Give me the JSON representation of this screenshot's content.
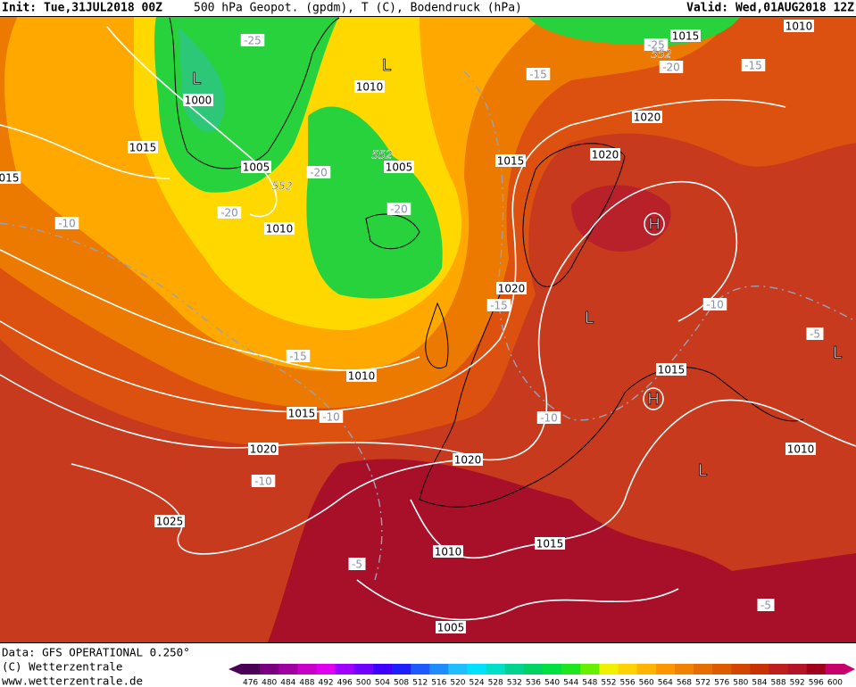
{
  "header": {
    "init": "Init: Tue,31JUL2018 00Z",
    "title": "500 hPa Geopot. (gpdm), T (C), Bodendruck (hPa)",
    "valid": "Valid: Wed,01AUG2018 12Z"
  },
  "footer": {
    "data": "Data: GFS OPERATIONAL 0.250°",
    "copyright": "(C) Wetterzentrale",
    "website": "www.wetterzentrale.de"
  },
  "legend": {
    "ticks": [
      476,
      480,
      484,
      488,
      492,
      496,
      500,
      504,
      508,
      512,
      516,
      520,
      524,
      528,
      532,
      536,
      540,
      544,
      548,
      552,
      556,
      560,
      564,
      568,
      572,
      576,
      580,
      584,
      588,
      592,
      596,
      600
    ],
    "colors": [
      "#4b0055",
      "#7a0080",
      "#a000a0",
      "#c800c8",
      "#e000f0",
      "#a000ff",
      "#7000ff",
      "#4000ff",
      "#1e1eff",
      "#1e5aff",
      "#1e8cff",
      "#1ebeff",
      "#00e0ff",
      "#00e0c8",
      "#00d290",
      "#00d264",
      "#00e040",
      "#1ee61e",
      "#64f000",
      "#f0f000",
      "#ffd200",
      "#ffb400",
      "#ff9600",
      "#f08200",
      "#e66e00",
      "#dc5a00",
      "#d24600",
      "#c83200",
      "#be1e1e",
      "#b41428",
      "#a0001e",
      "#c8006e"
    ]
  },
  "labels": [
    {
      "text": "1000",
      "kind": "isobar"
    },
    {
      "text": "1015",
      "kind": "isobar"
    },
    {
      "text": "1005",
      "kind": "isobar"
    },
    {
      "text": "1010",
      "kind": "isobar"
    },
    {
      "text": "1005",
      "kind": "isobar"
    },
    {
      "text": "1010",
      "kind": "isobar"
    },
    {
      "text": "1015",
      "kind": "isobar"
    },
    {
      "text": "1020",
      "kind": "isobar"
    },
    {
      "text": "1020",
      "kind": "isobar"
    },
    {
      "text": "1015",
      "kind": "isobar"
    },
    {
      "text": "1010",
      "kind": "isobar"
    },
    {
      "text": "1020",
      "kind": "isobar"
    },
    {
      "text": "1010",
      "kind": "isobar"
    },
    {
      "text": "1015",
      "kind": "isobar"
    },
    {
      "text": "1020",
      "kind": "isobar"
    },
    {
      "text": "1020",
      "kind": "isobar"
    },
    {
      "text": "1015",
      "kind": "isobar"
    },
    {
      "text": "1010",
      "kind": "isobar"
    },
    {
      "text": "1025",
      "kind": "isobar"
    },
    {
      "text": "1010",
      "kind": "isobar"
    },
    {
      "text": "1015",
      "kind": "isobar"
    },
    {
      "text": "1005",
      "kind": "isobar"
    },
    {
      "text": "015",
      "kind": "isobar"
    },
    {
      "text": "-25",
      "kind": "temp"
    },
    {
      "text": "-25",
      "kind": "temp"
    },
    {
      "text": "-20",
      "kind": "temp"
    },
    {
      "text": "-15",
      "kind": "temp"
    },
    {
      "text": "-15",
      "kind": "temp"
    },
    {
      "text": "-20",
      "kind": "temp"
    },
    {
      "text": "-20",
      "kind": "temp"
    },
    {
      "text": "-20",
      "kind": "temp"
    },
    {
      "text": "-10",
      "kind": "temp"
    },
    {
      "text": "-15",
      "kind": "temp"
    },
    {
      "text": "-15",
      "kind": "temp"
    },
    {
      "text": "-10",
      "kind": "temp"
    },
    {
      "text": "-10",
      "kind": "temp"
    },
    {
      "text": "-10",
      "kind": "temp"
    },
    {
      "text": "-10",
      "kind": "temp"
    },
    {
      "text": "-5",
      "kind": "temp"
    },
    {
      "text": "-5",
      "kind": "temp"
    },
    {
      "text": "-5",
      "kind": "temp"
    },
    {
      "text": "552",
      "kind": "geopot"
    },
    {
      "text": "552",
      "kind": "geopot"
    },
    {
      "text": "552",
      "kind": "geopot"
    },
    {
      "text": "L",
      "kind": "center"
    },
    {
      "text": "L",
      "kind": "center"
    },
    {
      "text": "H",
      "kind": "center"
    },
    {
      "text": "H",
      "kind": "center"
    },
    {
      "text": "L",
      "kind": "center"
    },
    {
      "text": "L",
      "kind": "center"
    },
    {
      "text": "L",
      "kind": "center"
    }
  ]
}
